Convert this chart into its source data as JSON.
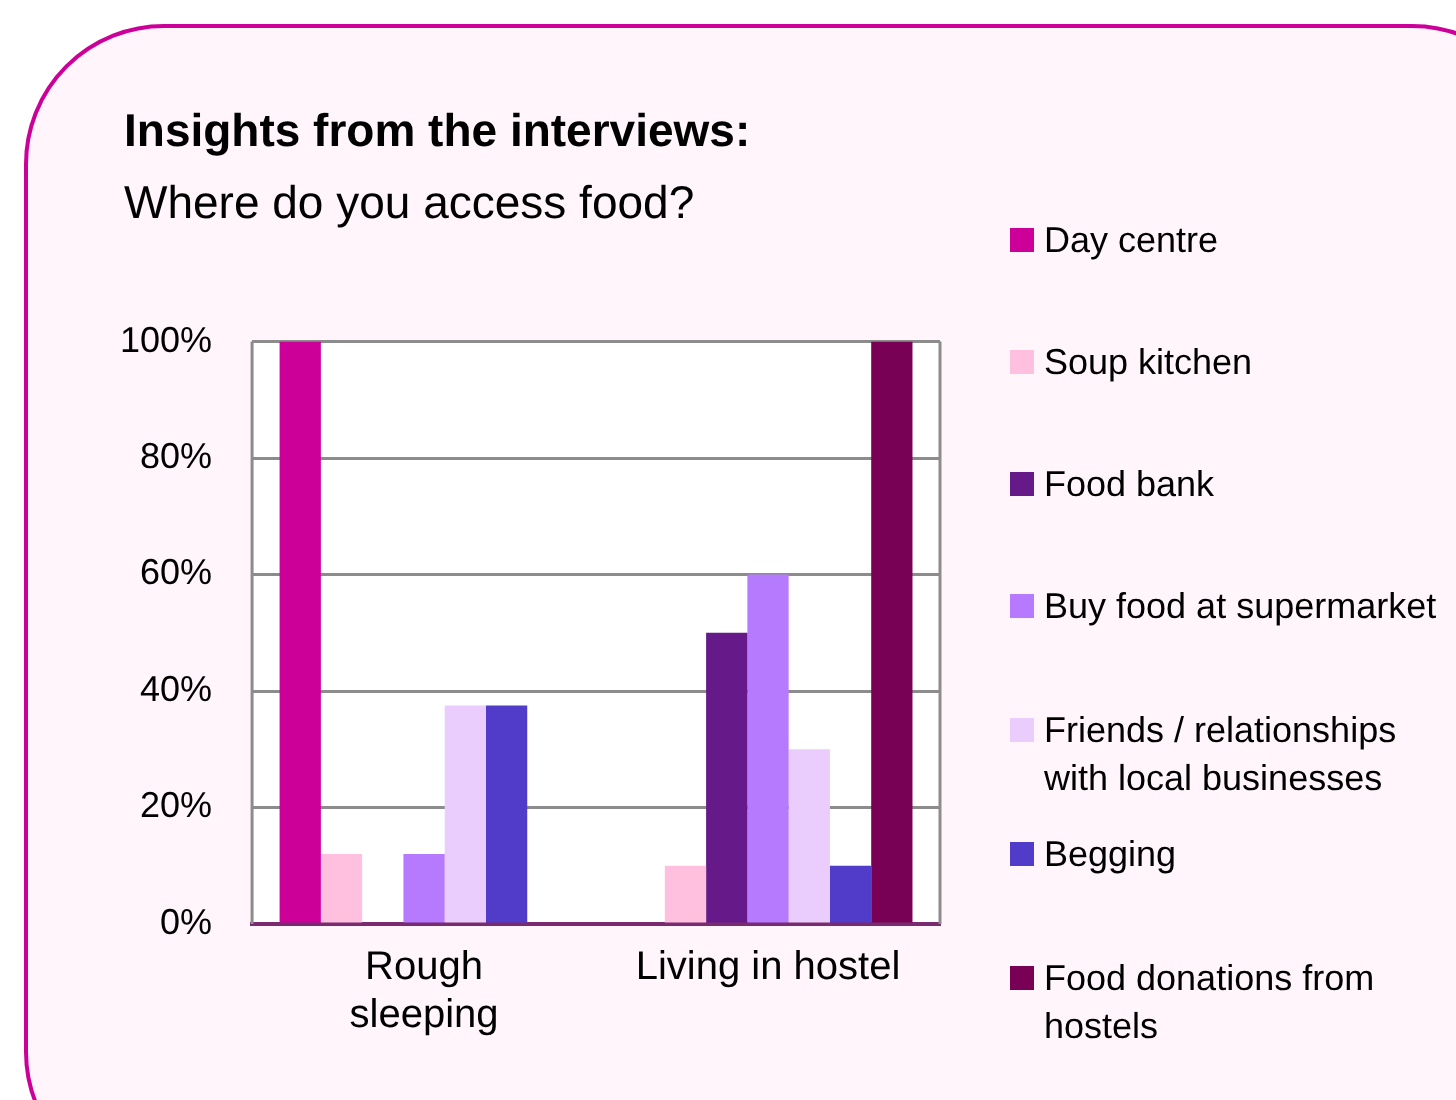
{
  "chart_data": {
    "type": "bar",
    "title": "Insights from the interviews:",
    "subtitle": "Where do you access food?",
    "categories": [
      "Rough sleeping",
      "Living in hostel"
    ],
    "series": [
      {
        "name": "Day centre",
        "color": "#cc0099",
        "values": [
          100,
          0
        ]
      },
      {
        "name": "Soup kitchen",
        "color": "#ffc0e0",
        "values": [
          12,
          10
        ]
      },
      {
        "name": "Food bank",
        "color": "#661a8a",
        "values": [
          0,
          50
        ]
      },
      {
        "name": "Buy food at supermarket",
        "color": "#b57aff",
        "values": [
          12,
          60
        ]
      },
      {
        "name": "Friends / relationships with local businesses",
        "color": "#eacdfc",
        "values": [
          37.5,
          30
        ]
      },
      {
        "name": "Begging",
        "color": "#503cc8",
        "values": [
          37.5,
          10
        ]
      },
      {
        "name": "Food donations from hostels",
        "color": "#780055",
        "values": [
          0,
          100
        ]
      }
    ],
    "ylim": [
      0,
      100
    ],
    "yticks": [
      {
        "value": 0,
        "label": "0%"
      },
      {
        "value": 20,
        "label": "20%"
      },
      {
        "value": 40,
        "label": "40%"
      },
      {
        "value": 60,
        "label": "60%"
      },
      {
        "value": 80,
        "label": "80%"
      },
      {
        "value": 100,
        "label": "100%"
      }
    ],
    "grid": "y",
    "legend": "right"
  }
}
